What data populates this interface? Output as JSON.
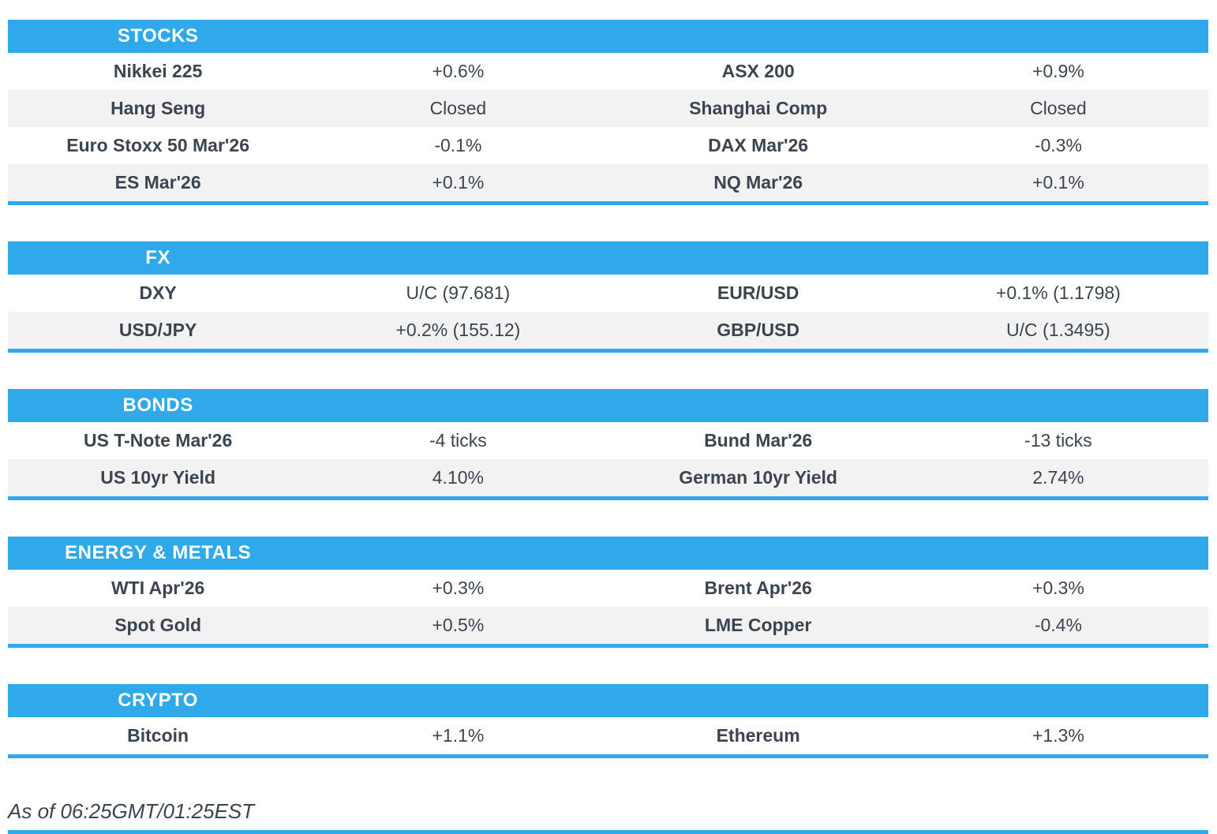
{
  "theme": {
    "accent_blue": "#2FA9E9",
    "alt_row_gray": "#F2F2F2",
    "text_dark": "#3C4450"
  },
  "sections": [
    {
      "title": "STOCKS",
      "rows": [
        [
          "Nikkei 225",
          "+0.6%",
          "ASX 200",
          "+0.9%"
        ],
        [
          "Hang Seng",
          "Closed",
          "Shanghai Comp",
          "Closed"
        ],
        [
          "Euro Stoxx 50 Mar'26",
          "-0.1%",
          "DAX Mar'26",
          "-0.3%"
        ],
        [
          "ES Mar'26",
          "+0.1%",
          "NQ Mar'26",
          "+0.1%"
        ]
      ]
    },
    {
      "title": "FX",
      "rows": [
        [
          "DXY",
          "U/C (97.681)",
          "EUR/USD",
          "+0.1% (1.1798)"
        ],
        [
          "USD/JPY",
          "+0.2% (155.12)",
          "GBP/USD",
          "U/C (1.3495)"
        ]
      ]
    },
    {
      "title": "BONDS",
      "rows": [
        [
          "US T-Note Mar'26",
          "-4 ticks",
          "Bund Mar'26",
          "-13 ticks"
        ],
        [
          "US 10yr Yield",
          "4.10%",
          "German 10yr Yield",
          "2.74%"
        ]
      ]
    },
    {
      "title": "ENERGY & METALS",
      "rows": [
        [
          "WTI Apr'26",
          "+0.3%",
          "Brent Apr'26",
          "+0.3%"
        ],
        [
          "Spot Gold",
          "+0.5%",
          "LME Copper",
          "-0.4%"
        ]
      ]
    },
    {
      "title": "CRYPTO",
      "rows": [
        [
          "Bitcoin",
          "+1.1%",
          "Ethereum",
          "+1.3%"
        ]
      ]
    }
  ],
  "footer": {
    "as_of": "As of 06:25GMT/01:25EST"
  }
}
